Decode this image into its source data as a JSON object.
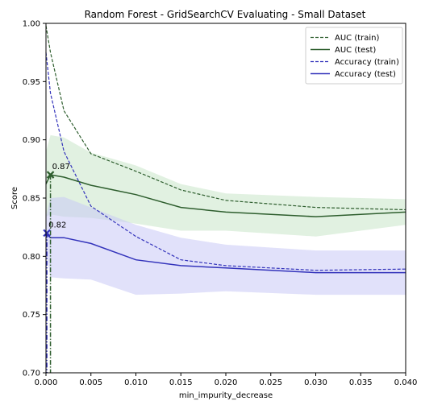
{
  "chart_data": {
    "type": "line",
    "title": "Random Forest - GridSearchCV Evaluating - Small Dataset",
    "xlabel": "min_impurity_decrease",
    "ylabel": "Score",
    "xlim": [
      0.0,
      0.04
    ],
    "ylim": [
      0.7,
      1.0
    ],
    "xticks": [
      0.0,
      0.005,
      0.01,
      0.015,
      0.02,
      0.025,
      0.03,
      0.035,
      0.04
    ],
    "xtick_labels": [
      "0.000",
      "0.005",
      "0.010",
      "0.015",
      "0.020",
      "0.025",
      "0.030",
      "0.035",
      "0.040"
    ],
    "yticks": [
      0.7,
      0.75,
      0.8,
      0.85,
      0.9,
      0.95,
      1.0
    ],
    "ytick_labels": [
      "0.70",
      "0.75",
      "0.80",
      "0.85",
      "0.90",
      "0.95",
      "1.00"
    ],
    "grid": false,
    "legend_position": "top-right",
    "x": [
      0.0,
      0.0005,
      0.002,
      0.005,
      0.01,
      0.015,
      0.02,
      0.03,
      0.04
    ],
    "series": [
      {
        "name": "AUC (train)",
        "color": "#2e5e2e",
        "style": "dashed",
        "values": [
          0.998,
          0.975,
          0.925,
          0.888,
          0.873,
          0.857,
          0.848,
          0.842,
          0.84
        ],
        "std": [
          0,
          0,
          0,
          0,
          0,
          0,
          0,
          0,
          0
        ]
      },
      {
        "name": "AUC (test)",
        "color": "#2e5e2e",
        "style": "solid",
        "values": [
          0.862,
          0.87,
          0.868,
          0.861,
          0.853,
          0.842,
          0.838,
          0.834,
          0.838
        ],
        "std": [
          0.028,
          0.034,
          0.034,
          0.028,
          0.025,
          0.02,
          0.016,
          0.017,
          0.011
        ],
        "band_color": "#c8e6c8"
      },
      {
        "name": "Accuracy (train)",
        "color": "#3333bb",
        "style": "dashed",
        "values": [
          0.975,
          0.94,
          0.89,
          0.843,
          0.817,
          0.797,
          0.792,
          0.788,
          0.789
        ],
        "std": [
          0,
          0,
          0,
          0,
          0,
          0,
          0,
          0,
          0
        ]
      },
      {
        "name": "Accuracy (test)",
        "color": "#3333bb",
        "style": "solid",
        "values": [
          0.819,
          0.816,
          0.816,
          0.811,
          0.797,
          0.792,
          0.79,
          0.786,
          0.786
        ],
        "std": [
          0.015,
          0.034,
          0.035,
          0.031,
          0.03,
          0.024,
          0.02,
          0.019,
          0.019
        ],
        "band_color": "#c8c8f5"
      }
    ],
    "best_markers": [
      {
        "x": 0.0005,
        "y": 0.87,
        "label": "0.87",
        "color": "#2e5e2e",
        "line_style": "dash-dot"
      },
      {
        "x": 0.0001,
        "y": 0.82,
        "label": "0.82",
        "color": "#3333bb",
        "line_style": "dash-dot"
      }
    ]
  }
}
